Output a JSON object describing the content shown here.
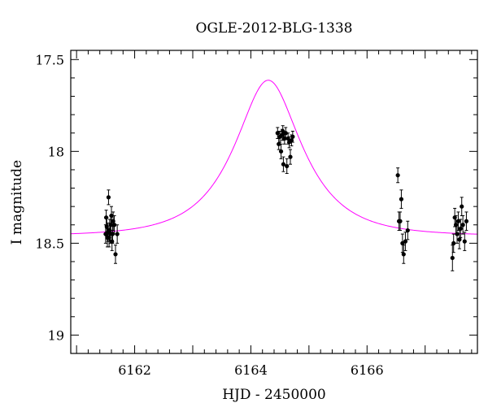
{
  "chart_data": {
    "type": "scatter",
    "title": "OGLE-2012-BLG-1338",
    "xlabel": "HJD - 2450000",
    "ylabel": "I magnitude",
    "xlim": [
      6160.9,
      6167.9
    ],
    "ylim": [
      19.1,
      17.45
    ],
    "y_inverted": true,
    "grid": false,
    "x_ticks": [
      6162,
      6164,
      6166
    ],
    "x_tick_labels": [
      "6162",
      "6164",
      "6166"
    ],
    "y_ticks": [
      17.5,
      18,
      18.5,
      19
    ],
    "y_tick_labels": [
      "17.5",
      "18",
      "18.5",
      "19"
    ],
    "colors": {
      "model": "#ff00ff",
      "data": "#000000"
    },
    "model_curve": {
      "type": "single-lens",
      "t0": 6164.3,
      "u0": 0.5,
      "tE": 1.0,
      "base_mag": 18.46
    },
    "series": [
      {
        "type": "errorbar",
        "x": [
          6161.5,
          6161.51,
          6161.52,
          6161.53,
          6161.54,
          6161.55,
          6161.56,
          6161.57,
          6161.58,
          6161.59,
          6161.6,
          6161.61,
          6161.62,
          6161.63,
          6161.65,
          6161.67,
          6161.7,
          6164.46,
          6164.48,
          6164.5,
          6164.52,
          6164.54,
          6164.55,
          6164.56,
          6164.58,
          6164.6,
          6164.62,
          6164.64,
          6164.66,
          6164.68,
          6164.7,
          6164.72,
          6166.53,
          6166.55,
          6166.57,
          6166.59,
          6166.61,
          6166.63,
          6166.66,
          6166.7,
          6167.47,
          6167.49,
          6167.51,
          6167.53,
          6167.55,
          6167.57,
          6167.59,
          6167.61,
          6167.63,
          6167.65,
          6167.68,
          6167.71
        ],
        "y": [
          18.45,
          18.36,
          18.41,
          18.47,
          18.44,
          18.25,
          18.47,
          18.43,
          18.45,
          18.4,
          18.35,
          18.49,
          18.45,
          18.38,
          18.4,
          18.56,
          18.45,
          17.9,
          17.96,
          17.92,
          18.0,
          17.91,
          17.89,
          18.07,
          17.93,
          17.9,
          18.08,
          17.93,
          17.95,
          18.03,
          17.94,
          17.92,
          18.13,
          18.38,
          18.38,
          18.26,
          18.5,
          18.56,
          18.49,
          18.43,
          18.58,
          18.5,
          18.36,
          18.4,
          18.45,
          18.38,
          18.48,
          18.42,
          18.3,
          18.4,
          18.49,
          18.38
        ],
        "yerr": [
          0.05,
          0.04,
          0.05,
          0.05,
          0.05,
          0.04,
          0.05,
          0.06,
          0.05,
          0.05,
          0.05,
          0.05,
          0.05,
          0.05,
          0.05,
          0.05,
          0.05,
          0.03,
          0.03,
          0.03,
          0.04,
          0.03,
          0.03,
          0.04,
          0.03,
          0.03,
          0.04,
          0.03,
          0.03,
          0.04,
          0.03,
          0.03,
          0.04,
          0.05,
          0.05,
          0.05,
          0.05,
          0.05,
          0.05,
          0.05,
          0.07,
          0.05,
          0.05,
          0.05,
          0.05,
          0.05,
          0.05,
          0.05,
          0.05,
          0.05,
          0.05,
          0.05
        ]
      }
    ]
  }
}
